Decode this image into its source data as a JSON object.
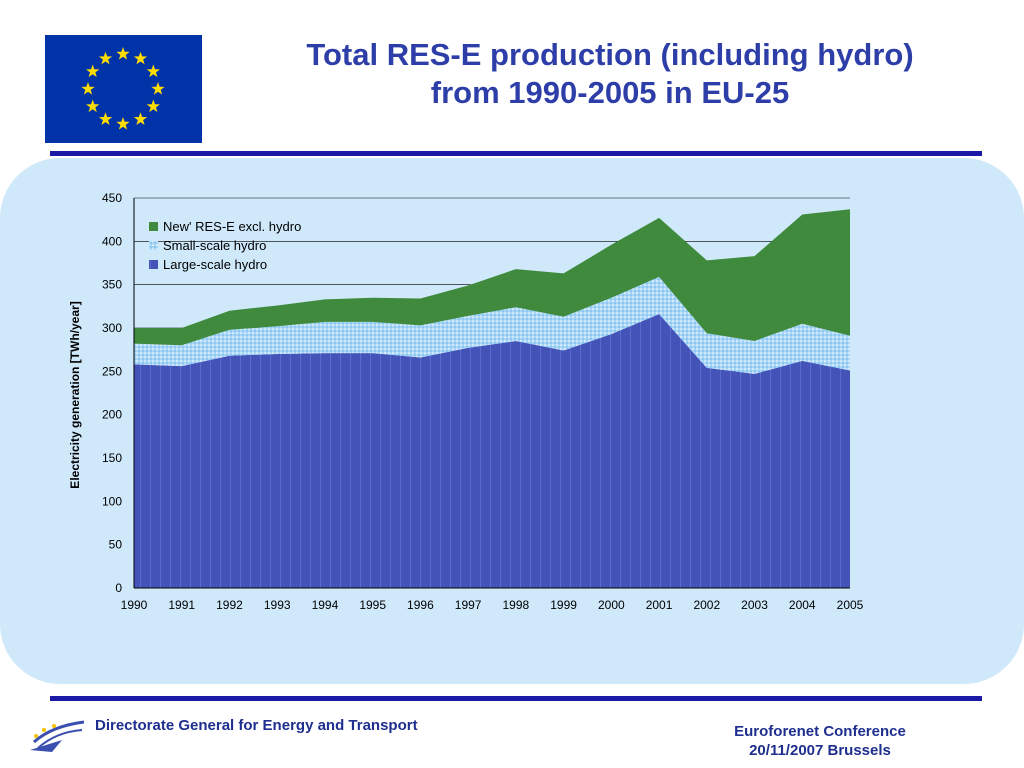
{
  "header": {
    "title_line1": "Total RES-E production (including hydro)",
    "title_line2": "from 1990-2005 in EU-25"
  },
  "footer": {
    "left_text": "Directorate General for Energy and Transport",
    "right_line1": "Euroforenet Conference",
    "right_line2": "20/11/2007 Brussels"
  },
  "colors": {
    "flag_blue": "#0033a8",
    "flag_star": "#ffdd00",
    "title": "#2d3ea8",
    "rule": "#1a1aa6",
    "panel": "#cfe9fb",
    "large_hydro": "#4353b8",
    "small_hydro": "#9ed0f4",
    "new_res": "#3f8a3c"
  },
  "chart_data": {
    "type": "area",
    "stacked": true,
    "ylabel": "Electricity generation [TWh/year]",
    "xlabel": "",
    "ylim": [
      0,
      450
    ],
    "yticks": [
      0,
      50,
      100,
      150,
      200,
      250,
      300,
      350,
      400,
      450
    ],
    "categories": [
      "1990",
      "1991",
      "1992",
      "1993",
      "1994",
      "1995",
      "1996",
      "1997",
      "1998",
      "1999",
      "2000",
      "2001",
      "2002",
      "2003",
      "2004",
      "2005"
    ],
    "legend_position": "top-left",
    "series": [
      {
        "name": "Large-scale hydro",
        "values": [
          258,
          256,
          268,
          270,
          271,
          271,
          266,
          277,
          285,
          274,
          293,
          316,
          254,
          247,
          262,
          251
        ]
      },
      {
        "name": "Small-scale hydro",
        "values": [
          24,
          24,
          30,
          32,
          36,
          36,
          37,
          37,
          39,
          39,
          42,
          43,
          40,
          38,
          43,
          40
        ]
      },
      {
        "name": "New' RES-E excl. hydro",
        "values": [
          18,
          20,
          22,
          24,
          26,
          28,
          31,
          35,
          44,
          50,
          61,
          68,
          84,
          98,
          126,
          146
        ]
      }
    ]
  }
}
